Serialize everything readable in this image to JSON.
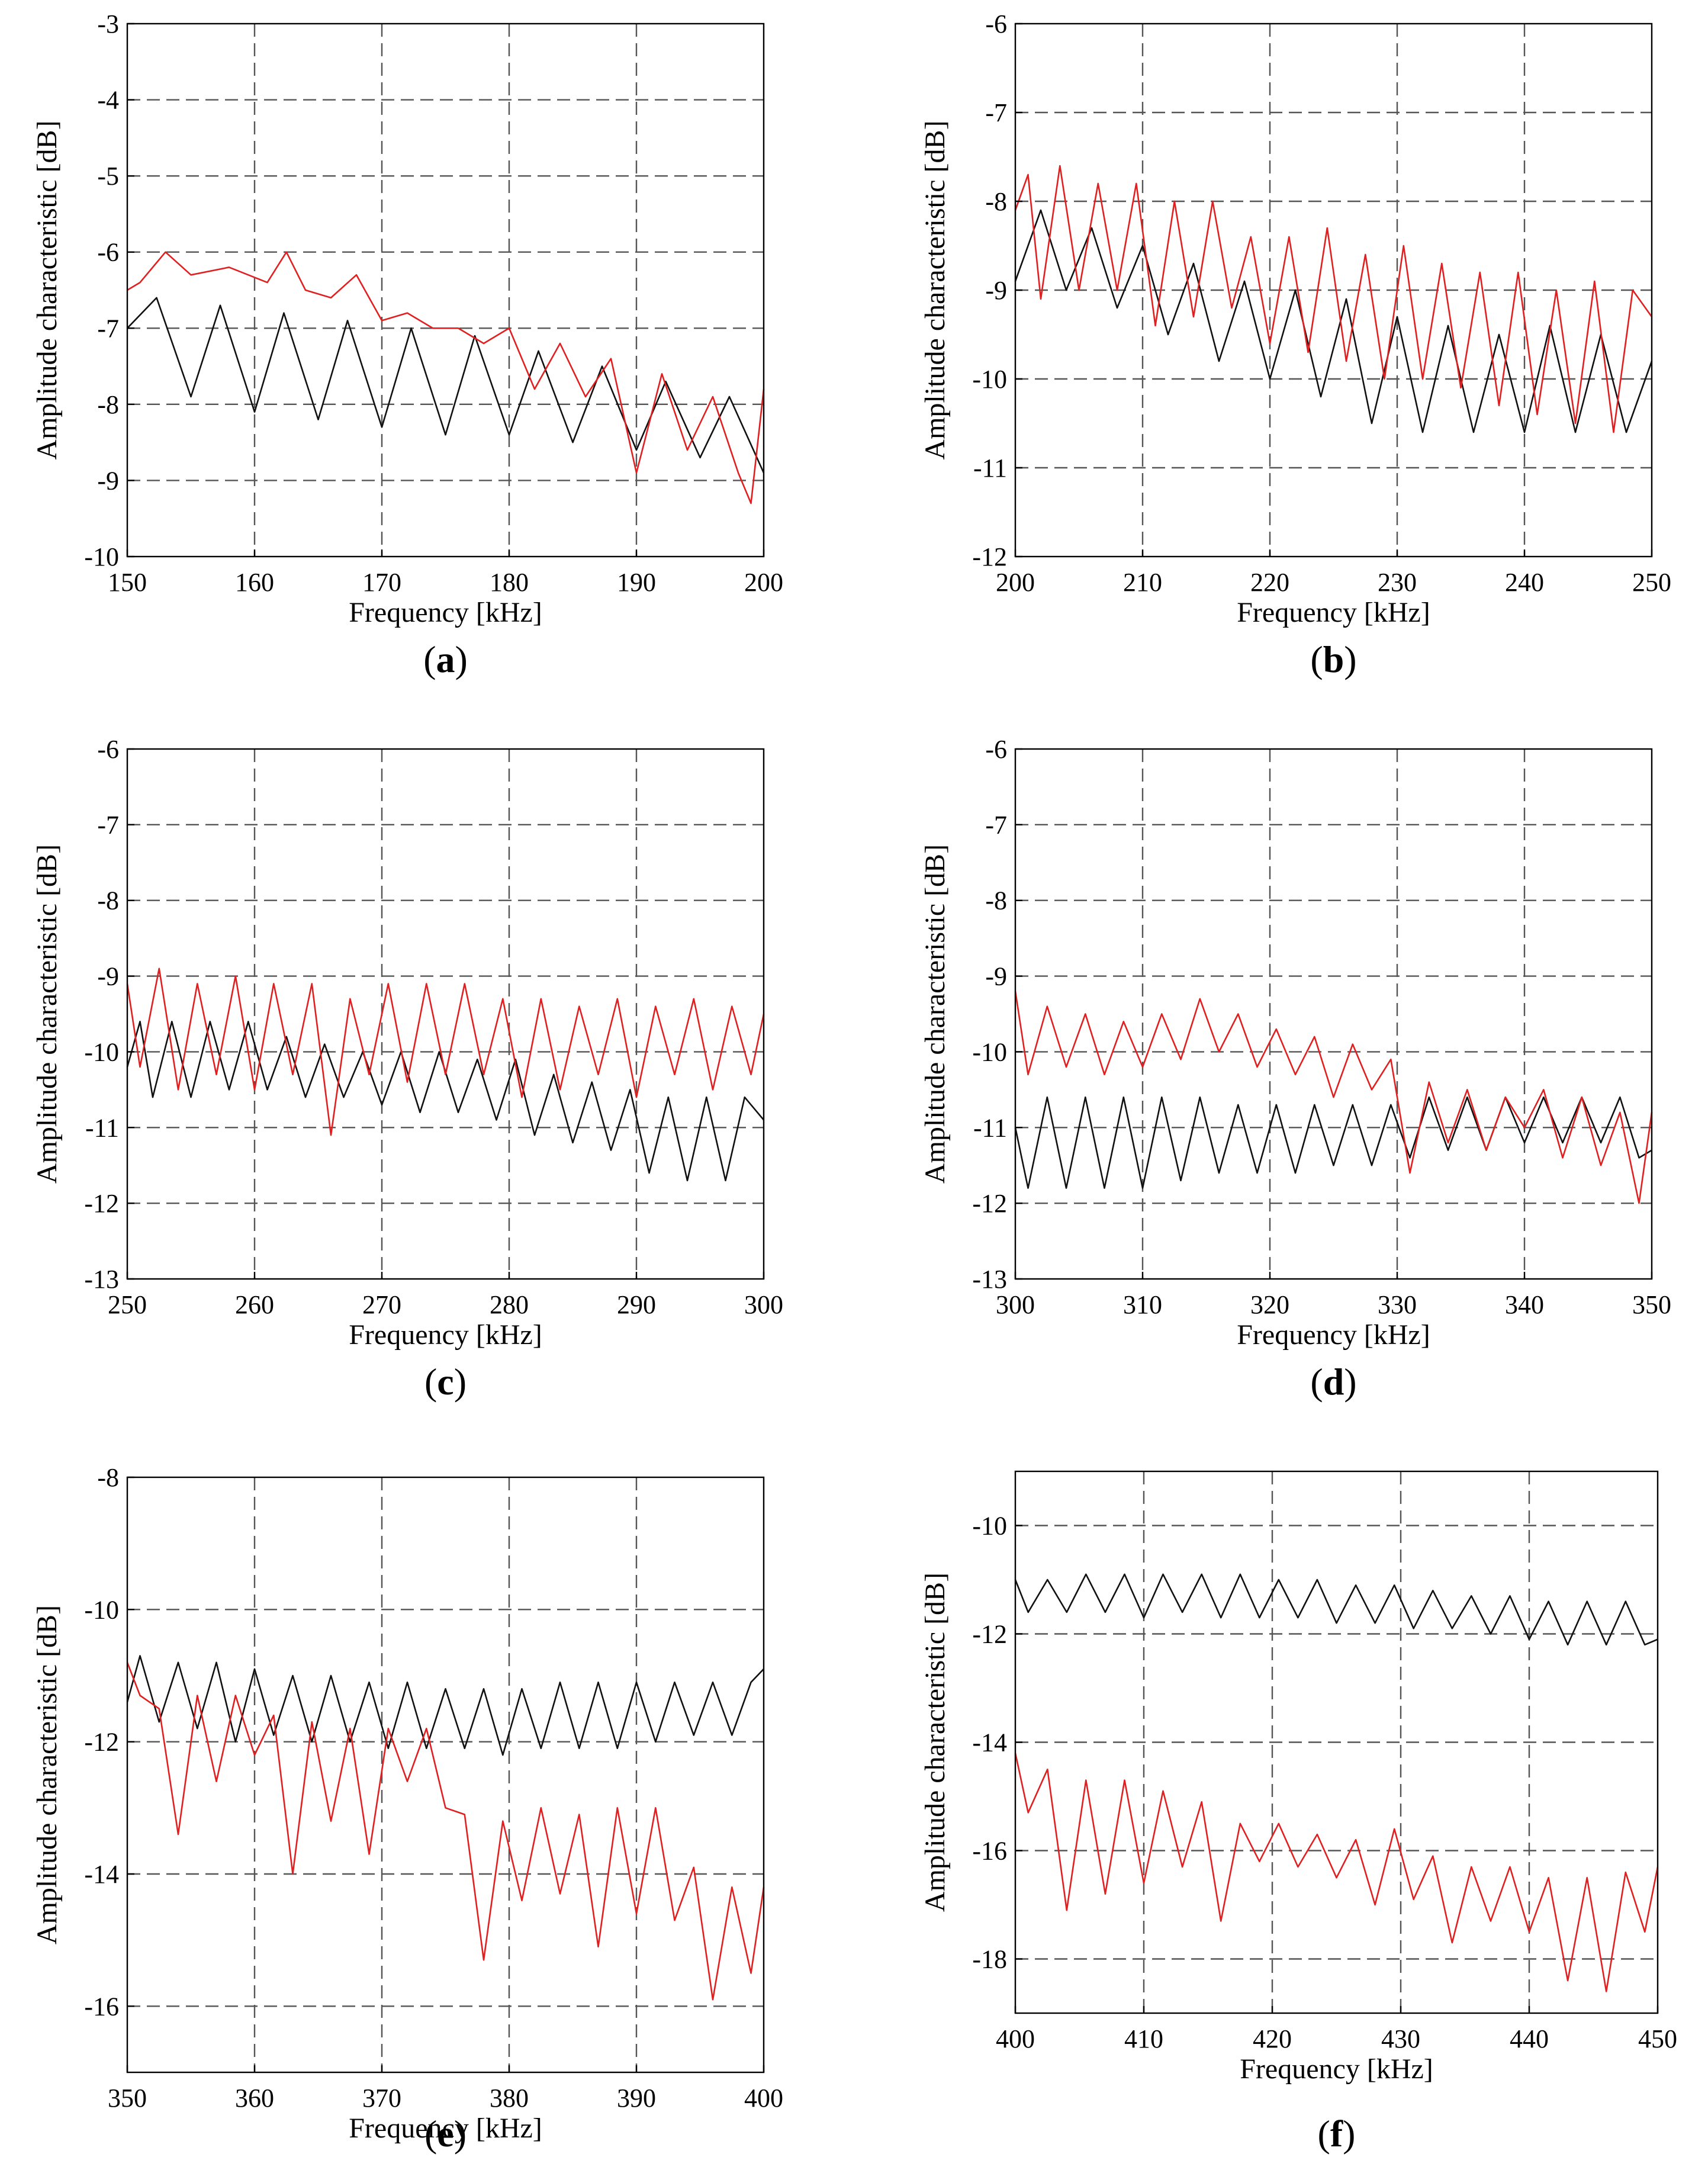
{
  "figure": {
    "domain_label": "Chart"
  },
  "colors": {
    "series_black": "#111111",
    "series_red": "#e02020",
    "grid": "#555555",
    "axis": "#000000"
  },
  "chart_data": [
    {
      "panel": "a",
      "caption_letter": "a",
      "type": "line",
      "xlabel": "Frequency [kHz]",
      "ylabel": "Amplitude characteristic [dB]",
      "xlim": [
        150,
        200
      ],
      "ylim": [
        -10,
        -3
      ],
      "xticks": [
        "150",
        "160",
        "170",
        "180",
        "190",
        "200"
      ],
      "yticks": [
        "-3",
        "-4",
        "-5",
        "-6",
        "-7",
        "-8",
        "-9",
        "-10"
      ],
      "yticks_values": [
        -3,
        -4,
        -5,
        -6,
        -7,
        -8,
        -9,
        -10
      ],
      "series": [
        {
          "name": "black",
          "color": "#111111",
          "x": [
            150,
            152.3,
            155,
            157.3,
            160,
            162.3,
            165,
            167.3,
            170,
            172.3,
            175,
            177.3,
            180,
            182.3,
            185,
            187.3,
            190,
            192.3,
            195,
            197.3,
            200
          ],
          "y": [
            -7.0,
            -6.6,
            -7.9,
            -6.7,
            -8.1,
            -6.8,
            -8.2,
            -6.9,
            -8.3,
            -7.0,
            -8.4,
            -7.1,
            -8.4,
            -7.3,
            -8.5,
            -7.5,
            -8.6,
            -7.7,
            -8.7,
            -7.9,
            -8.9
          ]
        },
        {
          "name": "red",
          "color": "#e02020",
          "x": [
            150,
            151,
            153,
            155,
            158,
            161,
            162.5,
            164,
            166,
            168,
            170,
            172,
            174,
            176,
            178,
            180,
            182,
            184,
            186,
            188,
            190,
            192,
            194,
            196,
            198,
            199,
            200
          ],
          "y": [
            -6.5,
            -6.4,
            -6.0,
            -6.3,
            -6.2,
            -6.4,
            -6.0,
            -6.5,
            -6.6,
            -6.3,
            -6.9,
            -6.8,
            -7.0,
            -7.0,
            -7.2,
            -7.0,
            -7.8,
            -7.2,
            -7.9,
            -7.4,
            -8.9,
            -7.6,
            -8.6,
            -7.9,
            -8.9,
            -9.3,
            -7.8
          ]
        }
      ]
    },
    {
      "panel": "b",
      "caption_letter": "b",
      "type": "line",
      "xlabel": "Frequency [kHz]",
      "ylabel": "Amplitude characteristic [dB]",
      "xlim": [
        200,
        250
      ],
      "ylim": [
        -12,
        -6
      ],
      "xticks": [
        "200",
        "210",
        "220",
        "230",
        "240",
        "250"
      ],
      "yticks": [
        "-6",
        "-7",
        "-8",
        "-9",
        "-10",
        "-11",
        "-12"
      ],
      "yticks_values": [
        -6,
        -7,
        -8,
        -9,
        -10,
        -11,
        -12
      ],
      "series": [
        {
          "name": "black",
          "color": "#111111",
          "x": [
            200,
            202,
            204,
            206,
            208,
            210,
            212,
            214,
            216,
            218,
            220,
            222,
            224,
            226,
            228,
            230,
            232,
            234,
            236,
            238,
            240,
            242,
            244,
            246,
            248,
            250
          ],
          "y": [
            -8.9,
            -8.1,
            -9.0,
            -8.3,
            -9.2,
            -8.5,
            -9.5,
            -8.7,
            -9.8,
            -8.9,
            -10.0,
            -9.0,
            -10.2,
            -9.1,
            -10.5,
            -9.3,
            -10.6,
            -9.4,
            -10.6,
            -9.5,
            -10.6,
            -9.4,
            -10.6,
            -9.5,
            -10.6,
            -9.8
          ]
        },
        {
          "name": "red",
          "color": "#e02020",
          "x": [
            200,
            201,
            202,
            203.5,
            205,
            206.5,
            208,
            209.5,
            211,
            212.5,
            214,
            215.5,
            217,
            218.5,
            220,
            221.5,
            223,
            224.5,
            226,
            227.5,
            229,
            230.5,
            232,
            233.5,
            235,
            236.5,
            238,
            239.5,
            241,
            242.5,
            244,
            245.5,
            247,
            248.5,
            250
          ],
          "y": [
            -8.1,
            -7.7,
            -9.1,
            -7.6,
            -9.0,
            -7.8,
            -9.0,
            -7.8,
            -9.4,
            -8.0,
            -9.3,
            -8.0,
            -9.2,
            -8.4,
            -9.6,
            -8.4,
            -9.7,
            -8.3,
            -9.8,
            -8.6,
            -10.0,
            -8.5,
            -10.0,
            -8.7,
            -10.1,
            -8.8,
            -10.3,
            -8.8,
            -10.4,
            -9.0,
            -10.5,
            -8.9,
            -10.6,
            -9.0,
            -9.3
          ]
        }
      ]
    },
    {
      "panel": "c",
      "caption_letter": "c",
      "type": "line",
      "xlabel": "Frequency [kHz]",
      "ylabel": "Amplitude characteristic [dB]",
      "xlim": [
        250,
        300
      ],
      "ylim": [
        -13,
        -6
      ],
      "xticks": [
        "250",
        "260",
        "270",
        "280",
        "290",
        "300"
      ],
      "yticks": [
        "-6",
        "-7",
        "-8",
        "-9",
        "-10",
        "-11",
        "-12",
        "-13"
      ],
      "yticks_values": [
        -6,
        -7,
        -8,
        -9,
        -10,
        -11,
        -12,
        -13
      ],
      "series": [
        {
          "name": "black",
          "color": "#111111",
          "x": [
            250,
            251,
            252,
            253.5,
            255,
            256.5,
            258,
            259.5,
            261,
            262.5,
            264,
            265.5,
            267,
            268.5,
            270,
            271.5,
            273,
            274.5,
            276,
            277.5,
            279,
            280.5,
            282,
            283.5,
            285,
            286.5,
            288,
            289.5,
            291,
            292.5,
            294,
            295.5,
            297,
            298.5,
            300
          ],
          "y": [
            -10.2,
            -9.6,
            -10.6,
            -9.6,
            -10.6,
            -9.6,
            -10.5,
            -9.6,
            -10.5,
            -9.8,
            -10.6,
            -9.9,
            -10.6,
            -10.0,
            -10.7,
            -10.0,
            -10.8,
            -10.0,
            -10.8,
            -10.1,
            -10.9,
            -10.1,
            -11.1,
            -10.3,
            -11.2,
            -10.4,
            -11.3,
            -10.5,
            -11.6,
            -10.6,
            -11.7,
            -10.6,
            -11.7,
            -10.6,
            -10.9
          ]
        },
        {
          "name": "red",
          "color": "#e02020",
          "x": [
            250,
            251,
            252.5,
            254,
            255.5,
            257,
            258.5,
            260,
            261.5,
            263,
            264.5,
            266,
            267.5,
            269,
            270.5,
            272,
            273.5,
            275,
            276.5,
            278,
            279.5,
            281,
            282.5,
            284,
            285.5,
            287,
            288.5,
            290,
            291.5,
            293,
            294.5,
            296,
            297.5,
            299,
            300
          ],
          "y": [
            -9.1,
            -10.2,
            -8.9,
            -10.5,
            -9.1,
            -10.3,
            -9.0,
            -10.5,
            -9.1,
            -10.3,
            -9.1,
            -11.1,
            -9.3,
            -10.3,
            -9.1,
            -10.4,
            -9.1,
            -10.3,
            -9.1,
            -10.3,
            -9.3,
            -10.6,
            -9.3,
            -10.5,
            -9.4,
            -10.3,
            -9.3,
            -10.6,
            -9.4,
            -10.3,
            -9.3,
            -10.5,
            -9.4,
            -10.3,
            -9.5
          ]
        }
      ]
    },
    {
      "panel": "d",
      "caption_letter": "d",
      "type": "line",
      "xlabel": "Frequency [kHz]",
      "ylabel": "Amplitude characteristic [dB]",
      "xlim": [
        300,
        350
      ],
      "ylim": [
        -13,
        -6
      ],
      "xticks": [
        "300",
        "310",
        "320",
        "330",
        "340",
        "350"
      ],
      "yticks": [
        "-6",
        "-7",
        "-8",
        "-9",
        "-10",
        "-11",
        "-12",
        "-13"
      ],
      "yticks_values": [
        -6,
        -7,
        -8,
        -9,
        -10,
        -11,
        -12,
        -13
      ],
      "series": [
        {
          "name": "black",
          "color": "#111111",
          "x": [
            300,
            301,
            302.5,
            304,
            305.5,
            307,
            308.5,
            310,
            311.5,
            313,
            314.5,
            316,
            317.5,
            319,
            320.5,
            322,
            323.5,
            325,
            326.5,
            328,
            329.5,
            331,
            332.5,
            334,
            335.5,
            337,
            338.5,
            340,
            341.5,
            343,
            344.5,
            346,
            347.5,
            349,
            350
          ],
          "y": [
            -11.0,
            -11.8,
            -10.6,
            -11.8,
            -10.6,
            -11.8,
            -10.6,
            -11.8,
            -10.6,
            -11.7,
            -10.6,
            -11.6,
            -10.7,
            -11.6,
            -10.7,
            -11.6,
            -10.7,
            -11.5,
            -10.7,
            -11.5,
            -10.7,
            -11.4,
            -10.6,
            -11.3,
            -10.6,
            -11.3,
            -10.6,
            -11.2,
            -10.6,
            -11.2,
            -10.6,
            -11.2,
            -10.6,
            -11.4,
            -11.3
          ]
        },
        {
          "name": "red",
          "color": "#e02020",
          "x": [
            300,
            301,
            302.5,
            304,
            305.5,
            307,
            308.5,
            310,
            311.5,
            313,
            314.5,
            316,
            317.5,
            319,
            320.5,
            322,
            323.5,
            325,
            326.5,
            328,
            329.5,
            331,
            332.5,
            334,
            335.5,
            337,
            338.5,
            340,
            341.5,
            343,
            344.5,
            346,
            347.5,
            349,
            350
          ],
          "y": [
            -9.2,
            -10.3,
            -9.4,
            -10.2,
            -9.5,
            -10.3,
            -9.6,
            -10.2,
            -9.5,
            -10.1,
            -9.3,
            -10.0,
            -9.5,
            -10.2,
            -9.7,
            -10.3,
            -9.8,
            -10.6,
            -9.9,
            -10.5,
            -10.1,
            -11.6,
            -10.4,
            -11.2,
            -10.5,
            -11.3,
            -10.6,
            -11.0,
            -10.5,
            -11.4,
            -10.6,
            -11.5,
            -10.8,
            -12.0,
            -10.8
          ]
        }
      ]
    },
    {
      "panel": "e",
      "caption_letter": "e",
      "type": "line",
      "xlabel": "Frequency [kHz]",
      "ylabel": "Amplitude characteristic [dB]",
      "xlim": [
        350,
        400
      ],
      "ylim": [
        -17,
        -8
      ],
      "xticks": [
        "350",
        "360",
        "370",
        "380",
        "390",
        "400"
      ],
      "yticks": [
        "-8",
        "-10",
        "-12",
        "-14",
        "-16"
      ],
      "yticks_values": [
        -8,
        -10,
        -12,
        -14,
        -16
      ],
      "series": [
        {
          "name": "black",
          "color": "#111111",
          "x": [
            350,
            351,
            352.5,
            354,
            355.5,
            357,
            358.5,
            360,
            361.5,
            363,
            364.5,
            366,
            367.5,
            369,
            370.5,
            372,
            373.5,
            375,
            376.5,
            378,
            379.5,
            381,
            382.5,
            384,
            385.5,
            387,
            388.5,
            390,
            391.5,
            393,
            394.5,
            396,
            397.5,
            399,
            400
          ],
          "y": [
            -11.4,
            -10.7,
            -11.7,
            -10.8,
            -11.8,
            -10.8,
            -12.0,
            -10.9,
            -11.9,
            -11.0,
            -12.0,
            -11.0,
            -12.0,
            -11.1,
            -12.1,
            -11.1,
            -12.1,
            -11.2,
            -12.1,
            -11.2,
            -12.2,
            -11.2,
            -12.1,
            -11.1,
            -12.1,
            -11.1,
            -12.1,
            -11.1,
            -12.0,
            -11.1,
            -11.9,
            -11.1,
            -11.9,
            -11.1,
            -10.9
          ]
        },
        {
          "name": "red",
          "color": "#e02020",
          "x": [
            350,
            351,
            352.5,
            354,
            355.5,
            357,
            358.5,
            360,
            361.5,
            363,
            364.5,
            366,
            367.5,
            369,
            370.5,
            372,
            373.5,
            375,
            376.5,
            378,
            379.5,
            381,
            382.5,
            384,
            385.5,
            387,
            388.5,
            390,
            391.5,
            393,
            394.5,
            396,
            397.5,
            399,
            400
          ],
          "y": [
            -10.8,
            -11.3,
            -11.5,
            -13.4,
            -11.3,
            -12.6,
            -11.3,
            -12.2,
            -11.6,
            -14.0,
            -11.7,
            -13.2,
            -11.8,
            -13.7,
            -11.8,
            -12.6,
            -11.8,
            -13.0,
            -13.1,
            -15.3,
            -13.2,
            -14.4,
            -13.0,
            -14.3,
            -13.1,
            -15.1,
            -13.0,
            -14.6,
            -13.0,
            -14.7,
            -13.9,
            -15.9,
            -14.2,
            -15.5,
            -14.2
          ]
        }
      ]
    },
    {
      "panel": "f",
      "caption_letter": "f",
      "type": "line",
      "xlabel": "Frequency [kHz]",
      "ylabel": "Amplitude characteristic [dB]",
      "xlim": [
        400,
        450
      ],
      "ylim": [
        -19,
        -9
      ],
      "xticks": [
        "400",
        "410",
        "420",
        "430",
        "440",
        "450"
      ],
      "yticks": [
        "-10",
        "-12",
        "-14",
        "-16",
        "-18"
      ],
      "yticks_values": [
        -10,
        -12,
        -14,
        -16,
        -18
      ],
      "series": [
        {
          "name": "black",
          "color": "#111111",
          "x": [
            400,
            401,
            402.5,
            404,
            405.5,
            407,
            408.5,
            410,
            411.5,
            413,
            414.5,
            416,
            417.5,
            419,
            420.5,
            422,
            423.5,
            425,
            426.5,
            428,
            429.5,
            431,
            432.5,
            434,
            435.5,
            437,
            438.5,
            440,
            441.5,
            443,
            444.5,
            446,
            447.5,
            449,
            450
          ],
          "y": [
            -11.0,
            -11.6,
            -11.0,
            -11.6,
            -10.9,
            -11.6,
            -10.9,
            -11.7,
            -10.9,
            -11.6,
            -10.9,
            -11.7,
            -10.9,
            -11.7,
            -11.0,
            -11.7,
            -11.0,
            -11.8,
            -11.1,
            -11.8,
            -11.1,
            -11.9,
            -11.2,
            -11.9,
            -11.3,
            -12.0,
            -11.3,
            -12.1,
            -11.4,
            -12.2,
            -11.4,
            -12.2,
            -11.4,
            -12.2,
            -12.1
          ]
        },
        {
          "name": "red",
          "color": "#e02020",
          "x": [
            400,
            401,
            402.5,
            404,
            405.5,
            407,
            408.5,
            410,
            411.5,
            413,
            414.5,
            416,
            417.5,
            419,
            420.5,
            422,
            423.5,
            425,
            426.5,
            428,
            429.5,
            431,
            432.5,
            434,
            435.5,
            437,
            438.5,
            440,
            441.5,
            443,
            444.5,
            446,
            447.5,
            449,
            450
          ],
          "y": [
            -14.2,
            -15.3,
            -14.5,
            -17.1,
            -14.7,
            -16.8,
            -14.7,
            -16.6,
            -14.9,
            -16.3,
            -15.1,
            -17.3,
            -15.5,
            -16.2,
            -15.5,
            -16.3,
            -15.7,
            -16.5,
            -15.8,
            -17.0,
            -15.6,
            -16.9,
            -16.1,
            -17.7,
            -16.3,
            -17.3,
            -16.3,
            -17.5,
            -16.5,
            -18.4,
            -16.5,
            -18.6,
            -16.4,
            -17.5,
            -16.3
          ]
        }
      ]
    }
  ]
}
